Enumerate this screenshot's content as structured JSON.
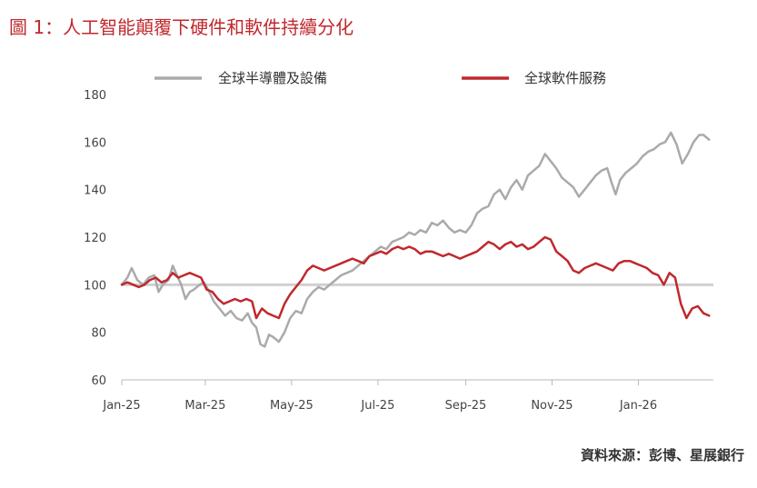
{
  "title": "圖 1：人工智能顛覆下硬件和軟件持續分化",
  "source": "資料來源：彭博、星展銀行",
  "chart_data": {
    "type": "line",
    "title": "圖 1：人工智能顛覆下硬件和軟件持續分化",
    "xlabel": "",
    "ylabel": "",
    "ylim": [
      60,
      180
    ],
    "yticks": [
      60,
      80,
      100,
      120,
      140,
      160,
      180
    ],
    "xlim": [
      "2025-01-01",
      "2026-02-23"
    ],
    "xticks": [
      {
        "label": "Jan-25",
        "date": "2025-01-01"
      },
      {
        "label": "Mar-25",
        "date": "2025-03-01"
      },
      {
        "label": "May-25",
        "date": "2025-05-01"
      },
      {
        "label": "Jul-25",
        "date": "2025-07-01"
      },
      {
        "label": "Sep-25",
        "date": "2025-09-01"
      },
      {
        "label": "Nov-25",
        "date": "2025-11-01"
      },
      {
        "label": "Jan-26",
        "date": "2026-01-01"
      }
    ],
    "grid": false,
    "legend": "top",
    "reference_line": {
      "y": 100,
      "color": "#d0d0d0"
    },
    "series": [
      {
        "name": "全球半導體及設備",
        "color": "#aaaaaa",
        "points": [
          [
            "2025-01-01",
            100
          ],
          [
            "2025-01-05",
            103
          ],
          [
            "2025-01-08",
            107
          ],
          [
            "2025-01-12",
            102
          ],
          [
            "2025-01-16",
            100
          ],
          [
            "2025-01-20",
            103
          ],
          [
            "2025-01-24",
            104
          ],
          [
            "2025-01-27",
            97
          ],
          [
            "2025-01-30",
            100
          ],
          [
            "2025-02-03",
            102
          ],
          [
            "2025-02-06",
            108
          ],
          [
            "2025-02-09",
            104
          ],
          [
            "2025-02-12",
            100
          ],
          [
            "2025-02-15",
            94
          ],
          [
            "2025-02-18",
            97
          ],
          [
            "2025-02-21",
            98
          ],
          [
            "2025-02-25",
            100
          ],
          [
            "2025-02-28",
            101
          ],
          [
            "2025-03-03",
            98
          ],
          [
            "2025-03-07",
            93
          ],
          [
            "2025-03-11",
            90
          ],
          [
            "2025-03-15",
            87
          ],
          [
            "2025-03-19",
            89
          ],
          [
            "2025-03-23",
            86
          ],
          [
            "2025-03-27",
            85
          ],
          [
            "2025-03-31",
            88
          ],
          [
            "2025-04-03",
            84
          ],
          [
            "2025-04-06",
            82
          ],
          [
            "2025-04-09",
            75
          ],
          [
            "2025-04-12",
            74
          ],
          [
            "2025-04-15",
            79
          ],
          [
            "2025-04-18",
            78
          ],
          [
            "2025-04-22",
            76
          ],
          [
            "2025-04-26",
            80
          ],
          [
            "2025-04-30",
            86
          ],
          [
            "2025-05-04",
            89
          ],
          [
            "2025-05-08",
            88
          ],
          [
            "2025-05-12",
            94
          ],
          [
            "2025-05-16",
            97
          ],
          [
            "2025-05-20",
            99
          ],
          [
            "2025-05-24",
            98
          ],
          [
            "2025-05-28",
            100
          ],
          [
            "2025-06-01",
            102
          ],
          [
            "2025-06-05",
            104
          ],
          [
            "2025-06-09",
            105
          ],
          [
            "2025-06-13",
            106
          ],
          [
            "2025-06-17",
            108
          ],
          [
            "2025-06-21",
            110
          ],
          [
            "2025-06-25",
            112
          ],
          [
            "2025-06-29",
            114
          ],
          [
            "2025-07-03",
            116
          ],
          [
            "2025-07-07",
            115
          ],
          [
            "2025-07-11",
            118
          ],
          [
            "2025-07-15",
            119
          ],
          [
            "2025-07-19",
            120
          ],
          [
            "2025-07-23",
            122
          ],
          [
            "2025-07-27",
            121
          ],
          [
            "2025-07-31",
            123
          ],
          [
            "2025-08-04",
            122
          ],
          [
            "2025-08-08",
            126
          ],
          [
            "2025-08-12",
            125
          ],
          [
            "2025-08-16",
            127
          ],
          [
            "2025-08-20",
            124
          ],
          [
            "2025-08-24",
            122
          ],
          [
            "2025-08-28",
            123
          ],
          [
            "2025-09-01",
            122
          ],
          [
            "2025-09-05",
            125
          ],
          [
            "2025-09-09",
            130
          ],
          [
            "2025-09-13",
            132
          ],
          [
            "2025-09-17",
            133
          ],
          [
            "2025-09-21",
            138
          ],
          [
            "2025-09-25",
            140
          ],
          [
            "2025-09-29",
            136
          ],
          [
            "2025-10-03",
            141
          ],
          [
            "2025-10-07",
            144
          ],
          [
            "2025-10-11",
            140
          ],
          [
            "2025-10-15",
            146
          ],
          [
            "2025-10-19",
            148
          ],
          [
            "2025-10-23",
            150
          ],
          [
            "2025-10-27",
            155
          ],
          [
            "2025-10-31",
            152
          ],
          [
            "2025-11-04",
            149
          ],
          [
            "2025-11-08",
            145
          ],
          [
            "2025-11-12",
            143
          ],
          [
            "2025-11-16",
            141
          ],
          [
            "2025-11-20",
            137
          ],
          [
            "2025-11-24",
            140
          ],
          [
            "2025-11-28",
            143
          ],
          [
            "2025-12-02",
            146
          ],
          [
            "2025-12-06",
            148
          ],
          [
            "2025-12-10",
            149
          ],
          [
            "2025-12-13",
            143
          ],
          [
            "2025-12-16",
            138
          ],
          [
            "2025-12-19",
            144
          ],
          [
            "2025-12-23",
            147
          ],
          [
            "2025-12-27",
            149
          ],
          [
            "2025-12-31",
            151
          ],
          [
            "2026-01-04",
            154
          ],
          [
            "2026-01-08",
            156
          ],
          [
            "2026-01-12",
            157
          ],
          [
            "2026-01-16",
            159
          ],
          [
            "2026-01-20",
            160
          ],
          [
            "2026-01-24",
            164
          ],
          [
            "2026-01-28",
            159
          ],
          [
            "2026-02-01",
            151
          ],
          [
            "2026-02-05",
            155
          ],
          [
            "2026-02-09",
            160
          ],
          [
            "2026-02-13",
            163
          ],
          [
            "2026-02-16",
            163
          ],
          [
            "2026-02-20",
            161
          ]
        ]
      },
      {
        "name": "全球軟件服務",
        "color": "#c0282d",
        "points": [
          [
            "2025-01-01",
            100
          ],
          [
            "2025-01-05",
            101
          ],
          [
            "2025-01-09",
            100
          ],
          [
            "2025-01-13",
            99
          ],
          [
            "2025-01-17",
            100
          ],
          [
            "2025-01-21",
            102
          ],
          [
            "2025-01-25",
            103
          ],
          [
            "2025-01-29",
            101
          ],
          [
            "2025-02-02",
            102
          ],
          [
            "2025-02-06",
            105
          ],
          [
            "2025-02-10",
            103
          ],
          [
            "2025-02-14",
            104
          ],
          [
            "2025-02-18",
            105
          ],
          [
            "2025-02-22",
            104
          ],
          [
            "2025-02-26",
            103
          ],
          [
            "2025-03-02",
            98
          ],
          [
            "2025-03-06",
            97
          ],
          [
            "2025-03-10",
            94
          ],
          [
            "2025-03-14",
            92
          ],
          [
            "2025-03-18",
            93
          ],
          [
            "2025-03-22",
            94
          ],
          [
            "2025-03-26",
            93
          ],
          [
            "2025-03-30",
            94
          ],
          [
            "2025-04-03",
            93
          ],
          [
            "2025-04-06",
            86
          ],
          [
            "2025-04-10",
            90
          ],
          [
            "2025-04-14",
            88
          ],
          [
            "2025-04-18",
            87
          ],
          [
            "2025-04-22",
            86
          ],
          [
            "2025-04-26",
            92
          ],
          [
            "2025-04-30",
            96
          ],
          [
            "2025-05-04",
            99
          ],
          [
            "2025-05-08",
            102
          ],
          [
            "2025-05-12",
            106
          ],
          [
            "2025-05-16",
            108
          ],
          [
            "2025-05-20",
            107
          ],
          [
            "2025-05-24",
            106
          ],
          [
            "2025-05-28",
            107
          ],
          [
            "2025-06-01",
            108
          ],
          [
            "2025-06-05",
            109
          ],
          [
            "2025-06-09",
            110
          ],
          [
            "2025-06-13",
            111
          ],
          [
            "2025-06-17",
            110
          ],
          [
            "2025-06-21",
            109
          ],
          [
            "2025-06-25",
            112
          ],
          [
            "2025-06-29",
            113
          ],
          [
            "2025-07-03",
            114
          ],
          [
            "2025-07-07",
            113
          ],
          [
            "2025-07-11",
            115
          ],
          [
            "2025-07-15",
            116
          ],
          [
            "2025-07-19",
            115
          ],
          [
            "2025-07-23",
            116
          ],
          [
            "2025-07-27",
            115
          ],
          [
            "2025-07-31",
            113
          ],
          [
            "2025-08-04",
            114
          ],
          [
            "2025-08-08",
            114
          ],
          [
            "2025-08-12",
            113
          ],
          [
            "2025-08-16",
            112
          ],
          [
            "2025-08-20",
            113
          ],
          [
            "2025-08-24",
            112
          ],
          [
            "2025-08-28",
            111
          ],
          [
            "2025-09-01",
            112
          ],
          [
            "2025-09-05",
            113
          ],
          [
            "2025-09-09",
            114
          ],
          [
            "2025-09-13",
            116
          ],
          [
            "2025-09-17",
            118
          ],
          [
            "2025-09-21",
            117
          ],
          [
            "2025-09-25",
            115
          ],
          [
            "2025-09-29",
            117
          ],
          [
            "2025-10-03",
            118
          ],
          [
            "2025-10-07",
            116
          ],
          [
            "2025-10-11",
            117
          ],
          [
            "2025-10-15",
            115
          ],
          [
            "2025-10-19",
            116
          ],
          [
            "2025-10-23",
            118
          ],
          [
            "2025-10-27",
            120
          ],
          [
            "2025-10-31",
            119
          ],
          [
            "2025-11-04",
            114
          ],
          [
            "2025-11-08",
            112
          ],
          [
            "2025-11-12",
            110
          ],
          [
            "2025-11-16",
            106
          ],
          [
            "2025-11-20",
            105
          ],
          [
            "2025-11-24",
            107
          ],
          [
            "2025-11-28",
            108
          ],
          [
            "2025-12-02",
            109
          ],
          [
            "2025-12-06",
            108
          ],
          [
            "2025-12-10",
            107
          ],
          [
            "2025-12-14",
            106
          ],
          [
            "2025-12-18",
            109
          ],
          [
            "2025-12-22",
            110
          ],
          [
            "2025-12-26",
            110
          ],
          [
            "2025-12-30",
            109
          ],
          [
            "2026-01-03",
            108
          ],
          [
            "2026-01-07",
            107
          ],
          [
            "2026-01-11",
            105
          ],
          [
            "2026-01-15",
            104
          ],
          [
            "2026-01-19",
            100
          ],
          [
            "2026-01-23",
            105
          ],
          [
            "2026-01-27",
            103
          ],
          [
            "2026-01-31",
            92
          ],
          [
            "2026-02-04",
            86
          ],
          [
            "2026-02-08",
            90
          ],
          [
            "2026-02-12",
            91
          ],
          [
            "2026-02-16",
            88
          ],
          [
            "2026-02-20",
            87
          ]
        ]
      }
    ]
  }
}
